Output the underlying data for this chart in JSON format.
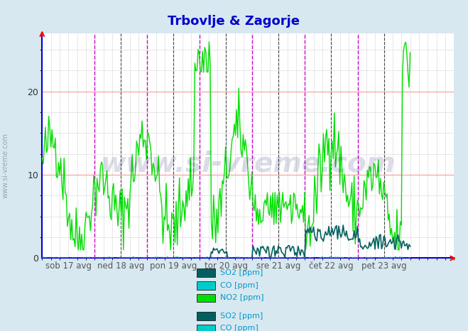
{
  "title": "Trbovlje & Zagorje",
  "title_color": "#0000cc",
  "bg_color": "#d8e8f0",
  "plot_bg_color": "#ffffff",
  "grid_color_major": "#ff9999",
  "grid_color_minor": "#dddddd",
  "ylim": [
    0,
    27
  ],
  "yticks": [
    0,
    10,
    20
  ],
  "xlabel_color": "#555555",
  "tick_labels": [
    "sob 17 avg",
    "ned 18 avg",
    "pon 19 avg",
    "tor 20 avg",
    "sre 21 avg",
    "čet 22 avg",
    "pet 23 avg"
  ],
  "vline_color_magenta": "#cc00cc",
  "vline_color_dark": "#333333",
  "axis_color": "#0000cc",
  "colors": {
    "SO2": "#006060",
    "CO": "#00cccc",
    "NO2": "#00dd00"
  },
  "legend_text_color": "#0099cc",
  "watermark_text": "www.si-vreme.com",
  "watermark_color": "#1a1a6e",
  "watermark_alpha": 0.15
}
